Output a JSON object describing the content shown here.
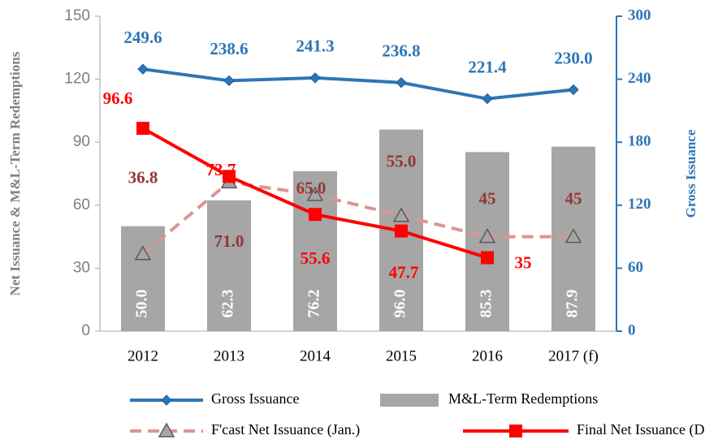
{
  "chart_data": {
    "type": "combo",
    "categories": [
      "2012",
      "2013",
      "2014",
      "2015",
      "2016",
      "2017 (f)"
    ],
    "ylabel": "Net Issuance & M&L-Term Redemptions",
    "y2label": "Gross Issuance",
    "ylim": [
      0,
      150
    ],
    "yticks": [
      0,
      30,
      60,
      90,
      120,
      150
    ],
    "y2lim": [
      0,
      300
    ],
    "y2ticks": [
      0,
      60,
      120,
      180,
      240,
      300
    ],
    "series": [
      {
        "name": "Gross Issuance",
        "type": "line",
        "axis": "y2",
        "color": "#2e75b6",
        "marker": "diamond",
        "linestyle": "solid",
        "values": [
          249.6,
          238.6,
          241.3,
          236.8,
          221.4,
          230.0
        ],
        "value_labels": [
          "249.6",
          "238.6",
          "241.3",
          "236.8",
          "221.4",
          "230.0"
        ]
      },
      {
        "name": "M&L-Term Redemptions",
        "type": "bar",
        "axis": "y",
        "color": "#a6a6a6",
        "values": [
          50.0,
          62.3,
          76.2,
          96.0,
          85.3,
          87.9
        ],
        "value_labels": [
          "50.0",
          "62.3",
          "76.2",
          "96.0",
          "85.3",
          "87.9"
        ]
      },
      {
        "name": "F'cast Net Issuance (Jan.)",
        "type": "line",
        "axis": "y",
        "color": "#d99694",
        "marker": "triangle",
        "linestyle": "dashed",
        "values": [
          36.8,
          71.0,
          65.0,
          55.0,
          45,
          45
        ],
        "value_labels": [
          "36.8",
          "71.0",
          "65.0",
          "55.0",
          "45",
          "45"
        ]
      },
      {
        "name": "Final Net Issuance (Dec.)",
        "type": "line",
        "axis": "y",
        "color": "#ff0000",
        "marker": "square",
        "linestyle": "solid",
        "values": [
          96.6,
          73.7,
          55.6,
          47.7,
          35,
          null
        ],
        "value_labels": [
          "96.6",
          "73.7",
          "55.6",
          "47.7",
          "35",
          null
        ]
      }
    ]
  }
}
